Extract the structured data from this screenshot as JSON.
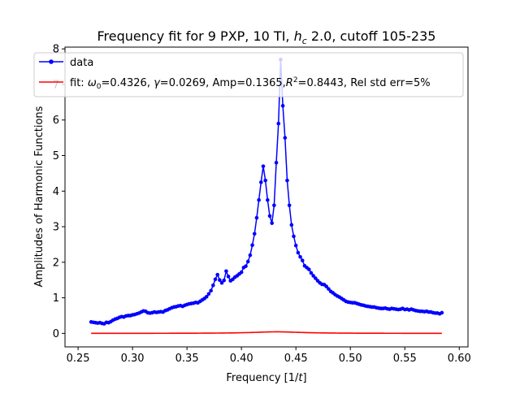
{
  "chart_data": {
    "type": "line",
    "title": "Frequency fit for 9 PXP, 10 TI, h_c 2.0, cutoff 105-235",
    "title_parts": {
      "before": "Frequency fit for 9 PXP, 10 TI, ",
      "symbol": "h",
      "subscript": "c",
      "after": " 2.0, cutoff 105-235"
    },
    "xlabel": "Frequency [1/t]",
    "xlabel_parts": {
      "before": "Frequency [1/",
      "italic": "t",
      "after": "]"
    },
    "ylabel": "Amplitudes of Harmonic Functions",
    "xlim": [
      0.238,
      0.608
    ],
    "ylim": [
      -0.38,
      8.05
    ],
    "x_ticks": [
      0.25,
      0.3,
      0.35,
      0.4,
      0.45,
      0.5,
      0.55,
      0.6
    ],
    "x_tick_labels": [
      "0.25",
      "0.30",
      "0.35",
      "0.40",
      "0.45",
      "0.50",
      "0.55",
      "0.60"
    ],
    "y_ticks": [
      0,
      1,
      2,
      3,
      4,
      5,
      6,
      7,
      8
    ],
    "y_tick_labels": [
      "0",
      "1",
      "2",
      "3",
      "4",
      "5",
      "6",
      "7",
      "8"
    ],
    "grid": false,
    "legend_position": "top-left",
    "legend": [
      {
        "label": "data",
        "color": "#0000ff",
        "style": "line-with-markers"
      },
      {
        "label": "fit: ω0=0.4326, γ=0.0269, Amp=0.1365,R2=0.8443, Rel std err=5%",
        "label_parts": {
          "p1": "fit: ",
          "w": "ω",
          "wsub": "0",
          "p2": "=0.4326, ",
          "g": "γ",
          "p3": "=0.0269, Amp=0.1365,",
          "r": "R",
          "rsup": "2",
          "p4": "=0.8443, Rel std err=5%"
        },
        "color": "#ff0000",
        "style": "line"
      }
    ],
    "series": [
      {
        "name": "data",
        "color": "#0000ff",
        "marker": "circle",
        "x": [
          0.262,
          0.264,
          0.266,
          0.268,
          0.27,
          0.272,
          0.274,
          0.276,
          0.278,
          0.28,
          0.282,
          0.284,
          0.286,
          0.288,
          0.29,
          0.292,
          0.294,
          0.296,
          0.298,
          0.3,
          0.302,
          0.304,
          0.306,
          0.308,
          0.31,
          0.312,
          0.314,
          0.316,
          0.318,
          0.32,
          0.322,
          0.324,
          0.326,
          0.328,
          0.33,
          0.332,
          0.334,
          0.336,
          0.338,
          0.34,
          0.342,
          0.344,
          0.346,
          0.348,
          0.35,
          0.352,
          0.354,
          0.356,
          0.358,
          0.36,
          0.362,
          0.364,
          0.366,
          0.368,
          0.37,
          0.372,
          0.374,
          0.376,
          0.378,
          0.38,
          0.382,
          0.384,
          0.386,
          0.388,
          0.39,
          0.392,
          0.394,
          0.396,
          0.398,
          0.4,
          0.402,
          0.404,
          0.406,
          0.408,
          0.41,
          0.412,
          0.414,
          0.416,
          0.418,
          0.42,
          0.422,
          0.424,
          0.426,
          0.428,
          0.43,
          0.432,
          0.434,
          0.436,
          0.438,
          0.44,
          0.442,
          0.444,
          0.446,
          0.448,
          0.45,
          0.452,
          0.454,
          0.456,
          0.458,
          0.46,
          0.462,
          0.464,
          0.466,
          0.468,
          0.47,
          0.472,
          0.474,
          0.476,
          0.478,
          0.48,
          0.482,
          0.484,
          0.486,
          0.488,
          0.49,
          0.492,
          0.494,
          0.496,
          0.498,
          0.5,
          0.502,
          0.504,
          0.506,
          0.508,
          0.51,
          0.512,
          0.514,
          0.516,
          0.518,
          0.52,
          0.522,
          0.524,
          0.526,
          0.528,
          0.53,
          0.532,
          0.534,
          0.536,
          0.538,
          0.54,
          0.542,
          0.544,
          0.546,
          0.548,
          0.55,
          0.552,
          0.554,
          0.556,
          0.558,
          0.56,
          0.562,
          0.564,
          0.566,
          0.568,
          0.57,
          0.572,
          0.574,
          0.576,
          0.578,
          0.58,
          0.582,
          0.584
        ],
        "y": [
          0.32,
          0.31,
          0.3,
          0.29,
          0.3,
          0.28,
          0.27,
          0.31,
          0.3,
          0.33,
          0.37,
          0.4,
          0.42,
          0.45,
          0.47,
          0.46,
          0.49,
          0.5,
          0.5,
          0.52,
          0.53,
          0.55,
          0.57,
          0.6,
          0.63,
          0.62,
          0.58,
          0.57,
          0.58,
          0.6,
          0.59,
          0.6,
          0.61,
          0.6,
          0.64,
          0.66,
          0.69,
          0.72,
          0.74,
          0.75,
          0.77,
          0.78,
          0.76,
          0.79,
          0.81,
          0.83,
          0.84,
          0.85,
          0.87,
          0.86,
          0.9,
          0.94,
          0.98,
          1.03,
          1.11,
          1.2,
          1.35,
          1.52,
          1.65,
          1.5,
          1.42,
          1.49,
          1.75,
          1.6,
          1.48,
          1.52,
          1.58,
          1.62,
          1.67,
          1.72,
          1.85,
          1.89,
          2.02,
          2.2,
          2.48,
          2.8,
          3.25,
          3.75,
          4.25,
          4.7,
          4.3,
          3.75,
          3.3,
          3.1,
          3.6,
          4.8,
          5.9,
          7.7,
          6.4,
          5.5,
          4.3,
          3.6,
          3.05,
          2.73,
          2.47,
          2.27,
          2.15,
          2.05,
          1.9,
          1.85,
          1.8,
          1.7,
          1.62,
          1.55,
          1.48,
          1.42,
          1.38,
          1.37,
          1.32,
          1.25,
          1.18,
          1.14,
          1.09,
          1.05,
          1.02,
          0.98,
          0.94,
          0.9,
          0.88,
          0.87,
          0.86,
          0.86,
          0.84,
          0.82,
          0.8,
          0.79,
          0.77,
          0.76,
          0.75,
          0.74,
          0.74,
          0.72,
          0.71,
          0.7,
          0.7,
          0.71,
          0.69,
          0.68,
          0.7,
          0.69,
          0.68,
          0.67,
          0.68,
          0.7,
          0.67,
          0.68,
          0.66,
          0.68,
          0.66,
          0.64,
          0.63,
          0.62,
          0.62,
          0.61,
          0.62,
          0.6,
          0.6,
          0.58,
          0.57,
          0.57,
          0.55,
          0.58
        ]
      },
      {
        "name": "fit",
        "color": "#ff0000",
        "marker": "none",
        "model": "lorentzian",
        "params": {
          "omega0": 0.4326,
          "gamma": 0.0269,
          "amp": 0.1365
        },
        "x_range": [
          0.262,
          0.584
        ],
        "samples": 161
      }
    ]
  }
}
